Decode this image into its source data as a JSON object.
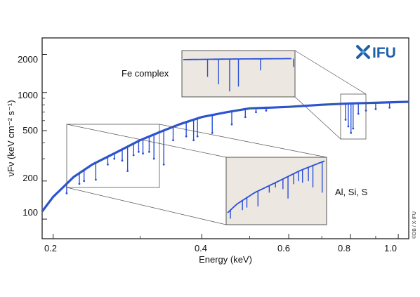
{
  "chart_data": {
    "type": "line",
    "x_scale": "log",
    "y_scale": "log",
    "xlabel": "Energy (keV)",
    "ylabel": "νFν (keV cm⁻² s⁻¹)",
    "xlim": [
      0.19,
      1.05
    ],
    "ylim": [
      70,
      2700
    ],
    "x_ticks": [
      {
        "value": 0.2,
        "label": "0.2"
      },
      {
        "value": 0.4,
        "label": "0.4"
      },
      {
        "value": 0.6,
        "label": "0.6"
      },
      {
        "value": 0.8,
        "label": "0.8"
      },
      {
        "value": 1.0,
        "label": "1.0"
      }
    ],
    "y_ticks": [
      {
        "value": 100,
        "label": "100"
      },
      {
        "value": 200,
        "label": "200"
      },
      {
        "value": 500,
        "label": "500"
      },
      {
        "value": 1000,
        "label": "1000"
      },
      {
        "value": 2000,
        "label": "2000"
      }
    ],
    "series": [
      {
        "color": "#2a4fd8",
        "continuum": [
          [
            0.19,
            115
          ],
          [
            0.2,
            150
          ],
          [
            0.21,
            180
          ],
          [
            0.22,
            215
          ],
          [
            0.24,
            270
          ],
          [
            0.27,
            340
          ],
          [
            0.3,
            420
          ],
          [
            0.33,
            490
          ],
          [
            0.36,
            560
          ],
          [
            0.4,
            640
          ],
          [
            0.45,
            700
          ],
          [
            0.5,
            750
          ],
          [
            0.55,
            760
          ],
          [
            0.6,
            770
          ],
          [
            0.7,
            800
          ],
          [
            0.8,
            820
          ],
          [
            0.9,
            830
          ],
          [
            1.0,
            840
          ],
          [
            1.05,
            845
          ]
        ],
        "absorption_lines": [
          [
            0.213,
            160
          ],
          [
            0.226,
            190
          ],
          [
            0.231,
            200
          ],
          [
            0.244,
            205
          ],
          [
            0.258,
            270
          ],
          [
            0.266,
            300
          ],
          [
            0.276,
            290
          ],
          [
            0.283,
            240
          ],
          [
            0.291,
            320
          ],
          [
            0.298,
            340
          ],
          [
            0.304,
            330
          ],
          [
            0.313,
            340
          ],
          [
            0.32,
            300
          ],
          [
            0.335,
            270
          ],
          [
            0.35,
            420
          ],
          [
            0.372,
            450
          ],
          [
            0.385,
            420
          ],
          [
            0.392,
            450
          ],
          [
            0.42,
            480
          ],
          [
            0.46,
            560
          ],
          [
            0.49,
            640
          ],
          [
            0.515,
            700
          ],
          [
            0.54,
            720
          ],
          [
            0.782,
            610
          ],
          [
            0.792,
            540
          ],
          [
            0.802,
            480
          ],
          [
            0.81,
            520
          ],
          [
            0.83,
            680
          ],
          [
            0.86,
            720
          ],
          [
            0.9,
            740
          ],
          [
            0.96,
            760
          ]
        ]
      }
    ],
    "annotations": [
      {
        "text": "Fe complex"
      },
      {
        "text": "Al, Si, S"
      }
    ],
    "grid": false,
    "legend": "none"
  },
  "logo": {
    "text": "IFU",
    "color": "#1f5fa8"
  },
  "credit": "©DB / X-IFU",
  "colors": {
    "inset_fill": "#ece7e1",
    "inset_border": "#444444",
    "data": "#2a4fd8",
    "points": "#3a7a5a"
  }
}
